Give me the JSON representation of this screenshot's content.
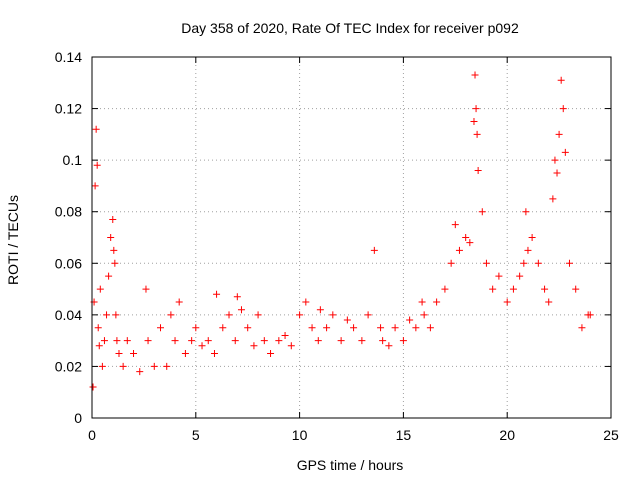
{
  "chart_data": {
    "type": "scatter",
    "title": "Day 358 of 2020, Rate Of TEC Index for receiver p092",
    "xlabel": "GPS time / hours",
    "ylabel": "ROTI / TECUs",
    "xlim": [
      0,
      25
    ],
    "ylim": [
      0,
      0.14
    ],
    "xticks": [
      0,
      5,
      10,
      15,
      20,
      25
    ],
    "xtick_labels": [
      "0",
      "5",
      "10",
      "15",
      "20",
      "25"
    ],
    "yticks": [
      0,
      0.02,
      0.04,
      0.06,
      0.08,
      0.1,
      0.12,
      0.14
    ],
    "ytick_labels": [
      "0",
      "0.02",
      "0.04",
      "0.06",
      "0.08",
      "0.1",
      "0.12",
      "0.14"
    ],
    "grid": true,
    "marker": "+",
    "color": "#ff0000",
    "series": [
      {
        "name": "ROTI",
        "x": [
          0.05,
          0.1,
          0.15,
          0.2,
          0.25,
          0.3,
          0.35,
          0.4,
          0.5,
          0.6,
          0.7,
          0.8,
          0.9,
          1.0,
          1.05,
          1.1,
          1.15,
          1.2,
          1.3,
          1.5,
          1.7,
          2.0,
          2.3,
          2.6,
          2.7,
          3.0,
          3.3,
          3.6,
          3.8,
          4.0,
          4.2,
          4.5,
          4.8,
          5.0,
          5.3,
          5.6,
          5.9,
          6.0,
          6.3,
          6.6,
          6.9,
          7.0,
          7.2,
          7.5,
          7.8,
          8.0,
          8.3,
          8.6,
          9.0,
          9.3,
          9.6,
          10.0,
          10.3,
          10.6,
          10.9,
          11.0,
          11.3,
          11.6,
          12.0,
          12.3,
          12.6,
          13.0,
          13.3,
          13.6,
          13.9,
          14.0,
          14.3,
          14.6,
          15.0,
          15.3,
          15.6,
          15.9,
          16.0,
          16.3,
          16.6,
          17.0,
          17.3,
          17.5,
          17.7,
          18.0,
          18.2,
          18.4,
          18.45,
          18.5,
          18.55,
          18.6,
          18.8,
          19.0,
          19.3,
          19.6,
          20.0,
          20.3,
          20.6,
          20.8,
          20.9,
          21.0,
          21.2,
          21.5,
          21.8,
          22.0,
          22.2,
          22.3,
          22.4,
          22.5,
          22.6,
          22.7,
          22.8,
          23.0,
          23.3,
          23.6,
          23.9,
          24.0
        ],
        "y": [
          0.012,
          0.045,
          0.09,
          0.112,
          0.098,
          0.035,
          0.028,
          0.05,
          0.02,
          0.03,
          0.04,
          0.055,
          0.07,
          0.077,
          0.065,
          0.06,
          0.04,
          0.03,
          0.025,
          0.02,
          0.03,
          0.025,
          0.018,
          0.05,
          0.03,
          0.02,
          0.035,
          0.02,
          0.04,
          0.03,
          0.045,
          0.025,
          0.03,
          0.035,
          0.028,
          0.03,
          0.025,
          0.048,
          0.035,
          0.04,
          0.03,
          0.047,
          0.042,
          0.035,
          0.028,
          0.04,
          0.03,
          0.025,
          0.03,
          0.032,
          0.028,
          0.04,
          0.045,
          0.035,
          0.03,
          0.042,
          0.035,
          0.04,
          0.03,
          0.038,
          0.035,
          0.03,
          0.04,
          0.065,
          0.035,
          0.03,
          0.028,
          0.035,
          0.03,
          0.038,
          0.035,
          0.045,
          0.04,
          0.035,
          0.045,
          0.05,
          0.06,
          0.075,
          0.065,
          0.07,
          0.068,
          0.115,
          0.133,
          0.12,
          0.11,
          0.096,
          0.08,
          0.06,
          0.05,
          0.055,
          0.045,
          0.05,
          0.055,
          0.06,
          0.08,
          0.065,
          0.07,
          0.06,
          0.05,
          0.045,
          0.085,
          0.1,
          0.095,
          0.11,
          0.131,
          0.12,
          0.103,
          0.06,
          0.05,
          0.035,
          0.04,
          0.04
        ]
      }
    ]
  }
}
